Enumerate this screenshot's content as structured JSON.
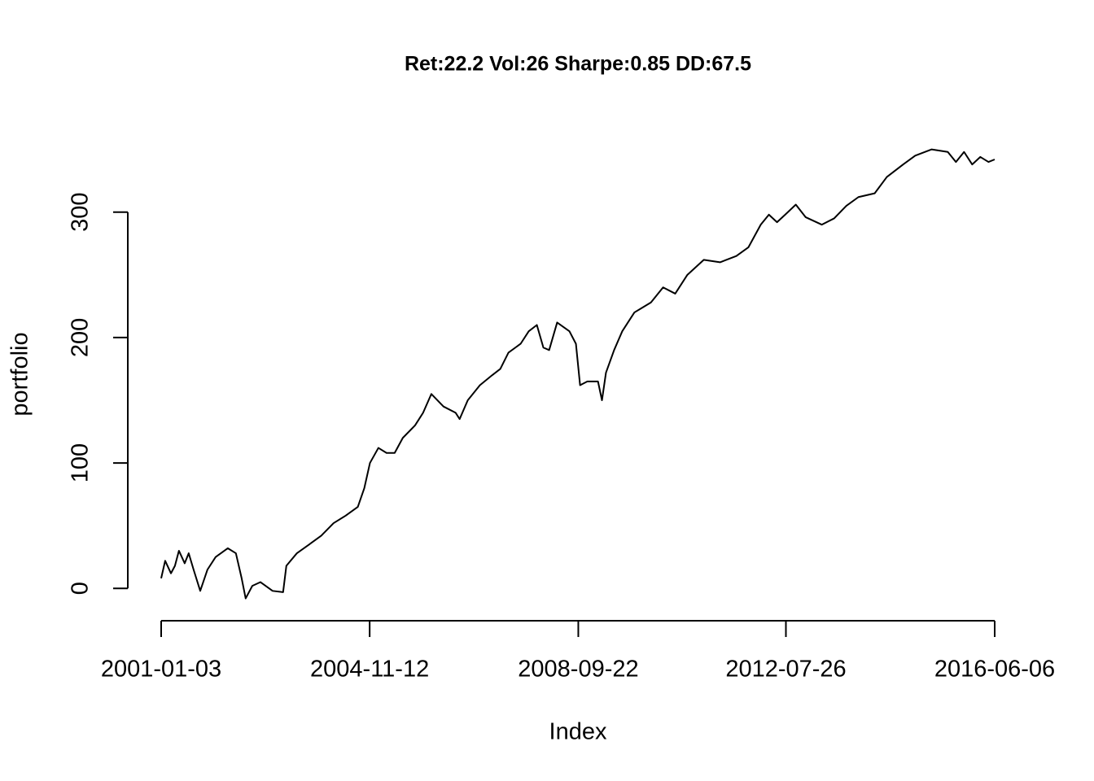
{
  "chart_data": {
    "type": "line",
    "title": "Ret:22.2 Vol:26 Sharpe:0.85 DD:67.5",
    "x_label": "Index",
    "y_label": "portfolio",
    "x": [
      "2001-01-03",
      "2001-01-30",
      "2001-03-10",
      "2001-04-06",
      "2001-05-03",
      "2001-06-11",
      "2001-07-08",
      "2001-08-10",
      "2001-09-24",
      "2001-11-12",
      "2002-01-06",
      "2002-03-29",
      "2002-05-23",
      "2002-07-01",
      "2002-07-28",
      "2002-09-11",
      "2002-11-05",
      "2003-01-26",
      "2003-04-07",
      "2003-04-29",
      "2003-07-09",
      "2003-09-30",
      "2003-12-21",
      "2004-03-13",
      "2004-06-03",
      "2004-08-24",
      "2004-10-07",
      "2004-11-14",
      "2005-01-10",
      "2005-03-06",
      "2005-04-30",
      "2005-06-24",
      "2005-09-15",
      "2005-11-08",
      "2006-01-03",
      "2006-03-26",
      "2006-06-16",
      "2006-07-13",
      "2006-09-06",
      "2006-11-27",
      "2007-02-18",
      "2007-04-14",
      "2007-06-08",
      "2007-08-29",
      "2007-10-23",
      "2007-12-17",
      "2008-01-30",
      "2008-03-09",
      "2008-05-02",
      "2008-07-24",
      "2008-09-06",
      "2008-10-04",
      "2008-11-22",
      "2009-02-02",
      "2009-03-01",
      "2009-03-28",
      "2009-05-22",
      "2009-07-16",
      "2009-10-06",
      "2010-01-26",
      "2010-04-18",
      "2010-07-09",
      "2010-09-29",
      "2011-01-18",
      "2011-05-08",
      "2011-08-26",
      "2011-11-16",
      "2012-02-07",
      "2012-04-02",
      "2012-05-27",
      "2012-07-21",
      "2012-10-01",
      "2012-12-06",
      "2013-03-26",
      "2013-06-17",
      "2013-09-07",
      "2013-11-28",
      "2014-03-18",
      "2014-06-08",
      "2014-09-26",
      "2014-12-17",
      "2015-04-06",
      "2015-07-25",
      "2015-09-18",
      "2015-11-12",
      "2016-01-06",
      "2016-03-01",
      "2016-04-25",
      "2016-06-06"
    ],
    "series": [
      {
        "name": "portfolio",
        "color": "#000000",
        "values": [
          8,
          22,
          12,
          18,
          30,
          20,
          28,
          15,
          -2,
          15,
          25,
          32,
          28,
          8,
          -8,
          2,
          5,
          -2,
          -3,
          18,
          28,
          35,
          42,
          52,
          58,
          65,
          80,
          100,
          112,
          108,
          108,
          120,
          130,
          140,
          155,
          145,
          140,
          135,
          150,
          162,
          170,
          175,
          188,
          195,
          205,
          210,
          192,
          190,
          212,
          205,
          195,
          162,
          165,
          165,
          150,
          172,
          190,
          205,
          220,
          228,
          240,
          235,
          250,
          262,
          260,
          265,
          272,
          290,
          298,
          292,
          298,
          306,
          296,
          290,
          295,
          305,
          312,
          315,
          328,
          338,
          345,
          350,
          348,
          340,
          348,
          338,
          344,
          340,
          342
        ]
      }
    ],
    "xlim": [
      "2001-01-03",
      "2016-06-06"
    ],
    "xticks": [
      "2001-01-03",
      "2004-11-12",
      "2008-09-22",
      "2012-07-26",
      "2016-06-06"
    ],
    "ylim": [
      -24.5,
      366
    ],
    "yticks": [
      0,
      100,
      200,
      300
    ]
  }
}
